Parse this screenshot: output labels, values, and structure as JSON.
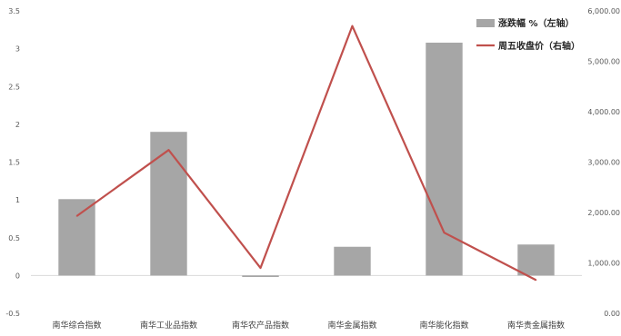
{
  "chart_data": {
    "type": "bar",
    "categories": [
      "南华综合指数",
      "南华工业品指数",
      "南华农产品指数",
      "南华金属指数",
      "南华能化指数",
      "南华贵金属指数"
    ],
    "series": [
      {
        "name": "涨跌幅 %（左轴）",
        "type": "bar",
        "axis": "left",
        "color": "#a6a6a6",
        "values": [
          1.01,
          1.9,
          -0.02,
          0.38,
          3.08,
          0.41
        ]
      },
      {
        "name": "周五收盘价（右轴）",
        "type": "line",
        "axis": "right",
        "color": "#c0504d",
        "values": [
          1930,
          3240,
          900,
          5700,
          1600,
          660
        ]
      }
    ],
    "y_left": {
      "range": [
        -0.5,
        3.5
      ],
      "ticks": [
        "-0.5",
        "0",
        "0.5",
        "1",
        "1.5",
        "2",
        "2.5",
        "3",
        "3.5"
      ],
      "tick_values": [
        -0.5,
        0,
        0.5,
        1,
        1.5,
        2,
        2.5,
        3,
        3.5
      ]
    },
    "y_right": {
      "range": [
        0,
        6000
      ],
      "ticks": [
        "0.00",
        "1,000.00",
        "2,000.00",
        "3,000.00",
        "4,000.00",
        "5,000.00",
        "6,000.00"
      ],
      "tick_values": [
        0,
        1000,
        2000,
        3000,
        4000,
        5000,
        6000
      ]
    },
    "grid": false,
    "legend_position": "top-right"
  }
}
